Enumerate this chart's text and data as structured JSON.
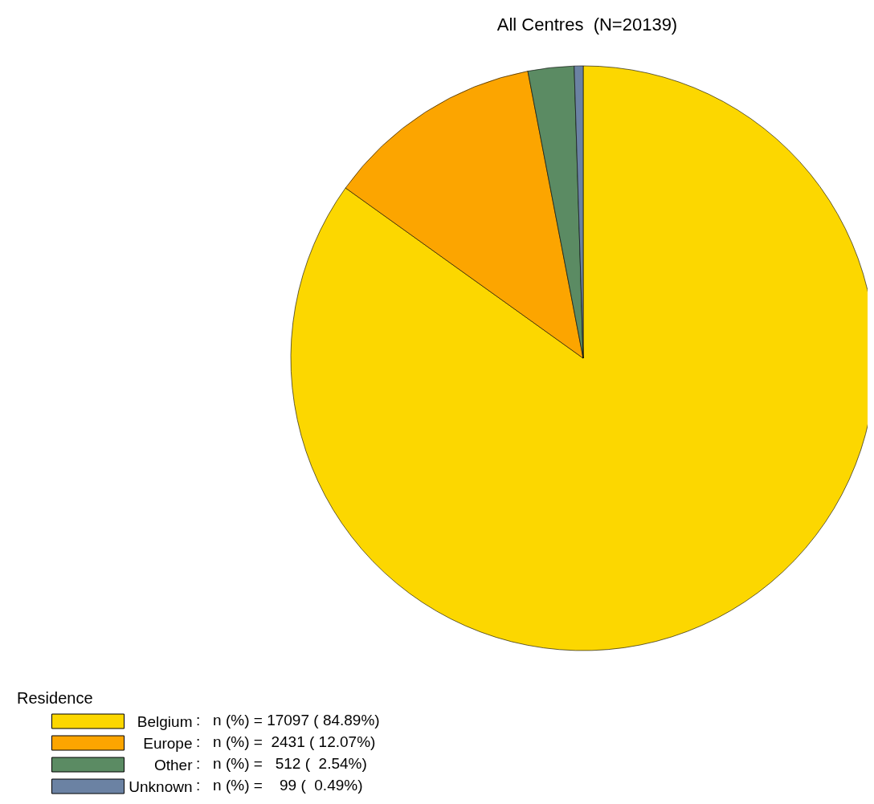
{
  "chart_data": {
    "type": "pie",
    "title": "All Centres  (N=20139)",
    "legend_title": "Residence",
    "legend": "bottom left",
    "categories": [
      "Belgium",
      "Europe",
      "Other",
      "Unknown"
    ],
    "values": [
      17097,
      2431,
      512,
      99
    ],
    "value_labels": [
      ":   n (%) = 17097 ( 84.89%)",
      ":   n (%) =  2431 ( 12.07%)",
      ":   n (%) =   512 (  2.54%)",
      ":   n (%) =    99 (  0.49%)"
    ],
    "colors": [
      "#fcd700",
      "#fca500",
      "#5b8b63",
      "#6b82a3"
    ]
  }
}
